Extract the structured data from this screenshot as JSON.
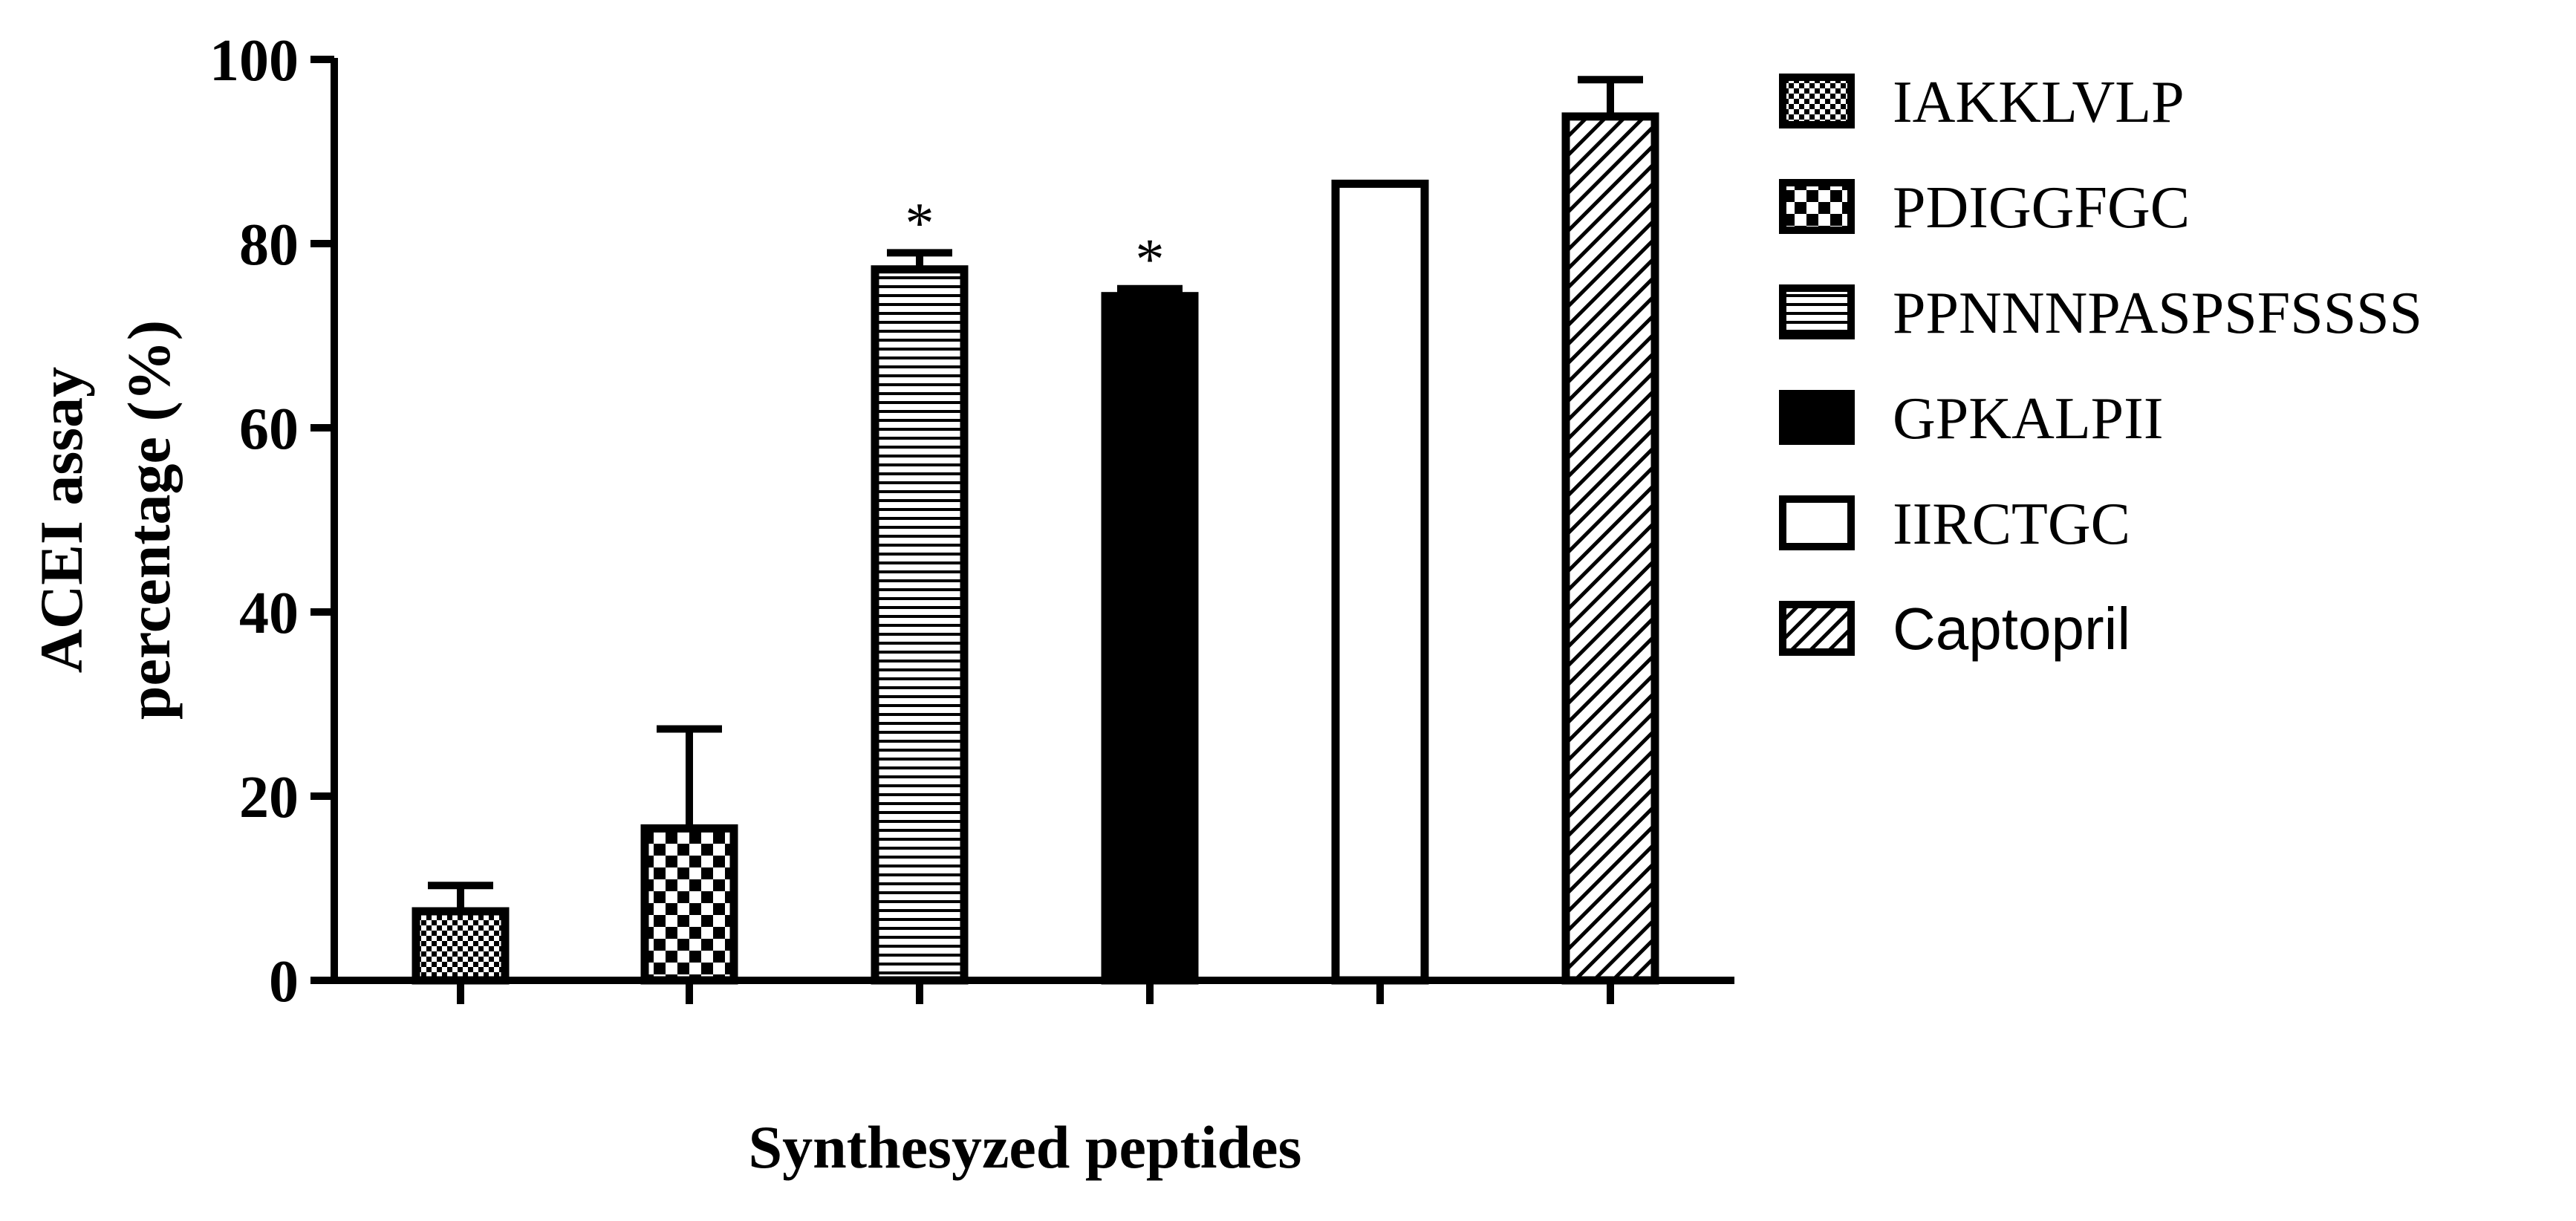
{
  "chart_data": {
    "type": "bar",
    "categories": [
      "IAKKLVLP",
      "PDIGGFGC",
      "PPNNNPASPSFSSSS",
      "GPKALPII",
      "IIRCTGC",
      "Captopril"
    ],
    "values": [
      7.5,
      16.5,
      77.2,
      74.3,
      86.5,
      93.8
    ],
    "errors": [
      2.8,
      10.8,
      1.8,
      0.8,
      0.0,
      4.0
    ],
    "significance": [
      "",
      "",
      "*",
      "*",
      "",
      ""
    ],
    "patterns": [
      "fine-checker",
      "checker",
      "horizontal-lines",
      "solid-black",
      "white",
      "diagonal-hatch"
    ],
    "xlabel": "Synthesyzed peptides",
    "ylabel_lines": [
      "ACEI assay",
      "percentage (%)"
    ],
    "ylim": [
      0,
      100
    ],
    "yticks": [
      0,
      20,
      40,
      60,
      80,
      100
    ],
    "legend": {
      "position": "right",
      "entries": [
        {
          "label": "IAKKLVLP",
          "pattern": "fine-checker",
          "font": "serif"
        },
        {
          "label": "PDIGGFGC",
          "pattern": "checker",
          "font": "serif"
        },
        {
          "label": "PPNNNPASPSFSSSS",
          "pattern": "horizontal-lines",
          "font": "serif"
        },
        {
          "label": "GPKALPII",
          "pattern": "solid-black",
          "font": "serif"
        },
        {
          "label": "IIRCTGC",
          "pattern": "white",
          "font": "serif"
        },
        {
          "label": "Captopril",
          "pattern": "diagonal-hatch",
          "font": "sans"
        }
      ]
    },
    "grid": false,
    "colors": {
      "ink": "#000000",
      "background": "#ffffff"
    }
  }
}
